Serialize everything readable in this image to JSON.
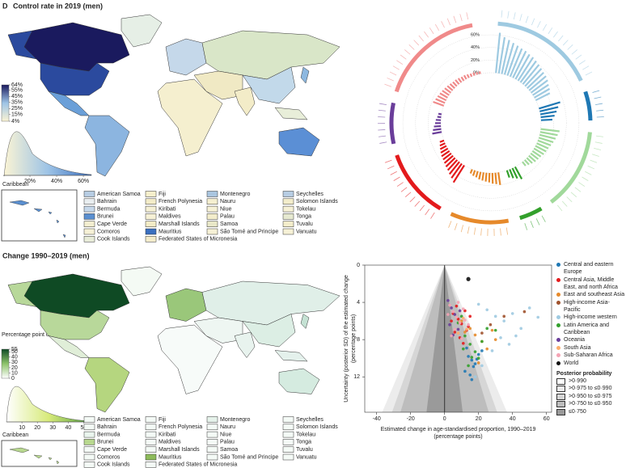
{
  "panel_d": {
    "label": "D",
    "title": "Control rate in 2019 (men)",
    "colorbar_lim": [
      4,
      64
    ],
    "colorbar_ticks": [
      {
        "value": 64,
        "label": "64%"
      },
      {
        "value": 55,
        "label": "55%"
      },
      {
        "value": 45,
        "label": "45%"
      },
      {
        "value": 35,
        "label": "35%"
      },
      {
        "value": 25,
        "label": "25%"
      },
      {
        "value": 15,
        "label": "15%"
      },
      {
        "value": 4,
        "label": "4%"
      }
    ],
    "density_xlim": [
      0,
      66
    ],
    "density_ticks": [
      {
        "value": 20,
        "label": "20%"
      },
      {
        "value": 40,
        "label": "40%"
      },
      {
        "value": 60,
        "label": "60%"
      }
    ],
    "inset_label": "Caribbean",
    "island_colors": [
      "#b7cde3",
      "#e9eef0",
      "#c6d8ea",
      "#5a8fd0",
      "#f3eed0",
      "#f6f1d6",
      "#e8ecd8",
      "#f6efcc",
      "#f3ecc8",
      "#f5f0d5",
      "#f6f1d6",
      "#f3ecc6",
      "#3a6fc0",
      "#f3eccb",
      "#aac6e0",
      "#f5efd0",
      "#f6f1d6",
      "#f3edcb",
      "#e9e8c8",
      "#f6f1d6",
      "#b7cde3",
      "#f3edcb",
      "#f6f1d6",
      "#e6e9d0",
      "#f3edcb",
      "#f6f1d6"
    ]
  },
  "panel_change": {
    "title": "Change 1990–2019 (men)",
    "legend_title": "Percentage point change",
    "colorbar_lim": [
      0,
      55
    ],
    "colorbar_ticks": [
      55,
      50,
      40,
      30,
      20,
      10,
      0
    ],
    "density_xlim": [
      0,
      55
    ],
    "density_ticks": [
      10,
      20,
      30,
      40,
      50
    ],
    "inset_label": "Caribbean",
    "island_colors": [
      "#f4faf6",
      "#f4faf6",
      "#eaf5ee",
      "#b8d88f",
      "#f4faf6",
      "#f4faf6",
      "#f4faf6",
      "#f4faf6",
      "#f4faf6",
      "#f4faf6",
      "#f4faf6",
      "#f4faf6",
      "#8dbb5a",
      "#f4faf6",
      "#e5f2ea",
      "#f4faf6",
      "#f4faf6",
      "#f4faf6",
      "#f4faf6",
      "#f4faf6",
      "#f4faf6",
      "#f4faf6",
      "#f4faf6",
      "#f4faf6",
      "#f4faf6",
      "#f4faf6"
    ]
  },
  "islands": [
    "American Samoa",
    "Bahrain",
    "Bermuda",
    "Brunei",
    "Cape Verde",
    "Comoros",
    "Cook Islands",
    "Fiji",
    "French Polynesia",
    "Kiribati",
    "Maldives",
    "Marshall Islands",
    "Mauritius",
    "Federated States of Micronesia",
    "Montenegro",
    "Nauru",
    "Niue",
    "Palau",
    "Samoa",
    "São Tomé and Principe",
    "Seychelles",
    "Solomon Islands",
    "Tokelau",
    "Tonga",
    "Tuvalu",
    "Vanuatu"
  ],
  "chart_data": [
    {
      "type": "radial-bar",
      "ylim": [
        0,
        64
      ],
      "yticks": [
        {
          "value": 0,
          "label": "0%"
        },
        {
          "value": 20,
          "label": "20%"
        },
        {
          "value": 40,
          "label": "40%"
        },
        {
          "value": 60,
          "label": "60%"
        }
      ],
      "series": [
        {
          "color": "#9ecae1",
          "values": [
            64,
            58,
            55,
            52,
            50,
            48,
            47,
            45,
            44,
            42,
            40,
            38,
            36,
            35,
            33,
            30,
            28,
            25
          ]
        },
        {
          "color": "#1f78b4",
          "values": [
            35,
            30,
            26,
            22,
            18
          ]
        },
        {
          "color": "#a1d99b",
          "values": [
            30,
            28,
            26,
            24,
            22,
            20,
            19,
            18,
            16,
            15,
            14,
            12,
            10,
            8
          ]
        },
        {
          "color": "#33a02c",
          "values": [
            22,
            18,
            15,
            12
          ]
        },
        {
          "color": "#e6892a",
          "values": [
            20,
            18,
            17,
            15,
            14,
            13,
            12,
            10,
            9,
            7
          ]
        },
        {
          "color": "#e31a1c",
          "values": [
            32,
            28,
            25,
            22,
            20,
            18,
            16,
            15,
            13,
            11,
            9,
            7
          ]
        },
        {
          "color": "#6a3d9a",
          "values": [
            15,
            13,
            11,
            9,
            8,
            6,
            5
          ]
        },
        {
          "color": "#f08a8a",
          "values": [
            18,
            16,
            15,
            14,
            13,
            12,
            11,
            10,
            9,
            9,
            8,
            7,
            7,
            6,
            5,
            5,
            4,
            4
          ]
        }
      ]
    },
    {
      "type": "scatter",
      "xlabel": [
        "Estimated change in age-standardised proportion, 1990–2019",
        "(percentage points)"
      ],
      "ylabel": [
        "Uncertainty (posterior SD) of the estimated change",
        "(percentage points)"
      ],
      "xlim": [
        -47,
        63
      ],
      "ylim": [
        0,
        15.8
      ],
      "y_inverted": true,
      "xticks": [
        -40,
        -20,
        0,
        20,
        40,
        60
      ],
      "yticks": [
        0,
        4,
        8,
        12
      ],
      "series": [
        {
          "name": "Central and eastern Europe",
          "color": "#1f78b4",
          "x": [
            14,
            16,
            18,
            12,
            20,
            15,
            17,
            22,
            13,
            19,
            16
          ],
          "y": [
            9.8,
            10.2,
            10.6,
            11.4,
            9.6,
            11.8,
            10.9,
            9.2,
            8.9,
            10.1,
            12.3
          ]
        },
        {
          "name": "Central Asia, Middle East, and north Africa",
          "color": "#e31a1c",
          "x": [
            5,
            8,
            10,
            12,
            14,
            6,
            9,
            11,
            15,
            7,
            13,
            4
          ],
          "y": [
            5.2,
            5.8,
            6.3,
            4.9,
            6.6,
            7.2,
            7.8,
            8.4,
            5.5,
            4.4,
            7.0,
            6.0
          ]
        },
        {
          "name": "East and southeast Asia",
          "color": "#e6892a",
          "x": [
            10,
            18,
            22,
            30,
            25,
            15,
            20,
            12,
            28
          ],
          "y": [
            6.0,
            7.5,
            8.2,
            8.0,
            9.0,
            6.8,
            10.5,
            7.2,
            7.0
          ]
        },
        {
          "name": "High-income Asia-Pacific",
          "color": "#a0522d",
          "x": [
            47,
            35,
            27,
            22
          ],
          "y": [
            5.0,
            5.5,
            6.4,
            7.3
          ]
        },
        {
          "name": "High-income western",
          "color": "#9ecae1",
          "x": [
            20,
            25,
            30,
            35,
            40,
            45,
            55,
            28,
            33,
            38,
            22,
            42,
            50,
            18
          ],
          "y": [
            4.2,
            4.8,
            5.5,
            6.0,
            5.2,
            6.8,
            5.6,
            9.2,
            7.8,
            8.5,
            10.8,
            7.6,
            4.6,
            12.0
          ]
        },
        {
          "name": "Latin America and Caribbean",
          "color": "#33a02c",
          "x": [
            8,
            12,
            15,
            18,
            20,
            25,
            10,
            14,
            22,
            16,
            30,
            11
          ],
          "y": [
            6.2,
            7.6,
            8.5,
            9.3,
            10.0,
            6.8,
            5.5,
            10.8,
            8.2,
            9.9,
            7.0,
            9.0
          ]
        },
        {
          "name": "Oceania",
          "color": "#6a3d9a",
          "x": [
            2,
            4,
            6,
            3,
            8,
            5,
            9
          ],
          "y": [
            3.8,
            4.6,
            5.3,
            6.4,
            6.9,
            7.5,
            4.9
          ]
        },
        {
          "name": "South Asia",
          "color": "#fdae6b",
          "x": [
            9,
            11,
            13,
            8
          ],
          "y": [
            6.1,
            5.7,
            6.9,
            7.3
          ]
        },
        {
          "name": "Sub-Saharan Africa",
          "color": "#f4a3b4",
          "x": [
            3,
            5,
            7,
            9,
            11,
            4,
            6,
            10,
            12,
            8,
            14,
            2
          ],
          "y": [
            4.3,
            5.0,
            5.6,
            6.2,
            4.7,
            7.6,
            6.9,
            7.9,
            5.9,
            4.0,
            6.4,
            5.3
          ]
        },
        {
          "name": "World",
          "color": "#111111",
          "x": [
            14
          ],
          "y": [
            1.5
          ]
        }
      ],
      "legend_title": "Posterior probability",
      "probability_bands": [
        ">0·990",
        ">0·975 to ≤0·990",
        ">0·950 to ≤0·975",
        ">0·750 to ≤0·950",
        "≤0·750"
      ],
      "band_colors": [
        "#ffffff",
        "#ececec",
        "#d6d6d6",
        "#bdbdbd",
        "#9a9a9a"
      ]
    }
  ]
}
